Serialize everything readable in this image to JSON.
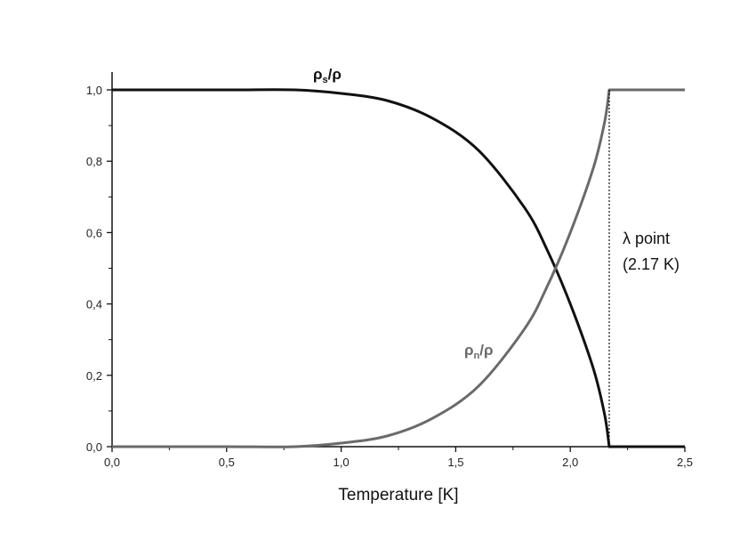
{
  "chart_data": {
    "type": "line",
    "xlabel": "Temperature [K]",
    "ylabel": "",
    "xlim": [
      0,
      2.5
    ],
    "ylim": [
      0,
      1.0
    ],
    "x_ticks": [
      "0,0",
      "0,5",
      "1,0",
      "1,5",
      "2,0",
      "2,5"
    ],
    "y_ticks": [
      "0,0",
      "0,2",
      "0,4",
      "0,6",
      "0,8",
      "1,0"
    ],
    "grid": false,
    "series": [
      {
        "name_main": "ρ",
        "name_sub": "s",
        "name_tail": "/ρ",
        "color": "#111111",
        "x": [
          0.0,
          0.5,
          0.8,
          1.0,
          1.2,
          1.4,
          1.6,
          1.8,
          1.9,
          2.0,
          2.1,
          2.15,
          2.17,
          2.5
        ],
        "y": [
          1.0,
          1.0,
          1.0,
          0.99,
          0.97,
          0.92,
          0.83,
          0.67,
          0.55,
          0.4,
          0.22,
          0.09,
          0.0,
          0.0
        ]
      },
      {
        "name_main": "ρ",
        "name_sub": "n",
        "name_tail": "/ρ",
        "color": "#6a6a6a",
        "x": [
          0.0,
          0.5,
          0.8,
          1.0,
          1.2,
          1.4,
          1.6,
          1.8,
          1.9,
          2.0,
          2.1,
          2.15,
          2.17,
          2.5
        ],
        "y": [
          0.0,
          0.0,
          0.0,
          0.01,
          0.03,
          0.08,
          0.17,
          0.33,
          0.45,
          0.6,
          0.78,
          0.91,
          1.0,
          1.0
        ]
      }
    ],
    "annotation": {
      "line1": "λ point",
      "line2": "(2.17 K)",
      "x": 2.17
    }
  }
}
